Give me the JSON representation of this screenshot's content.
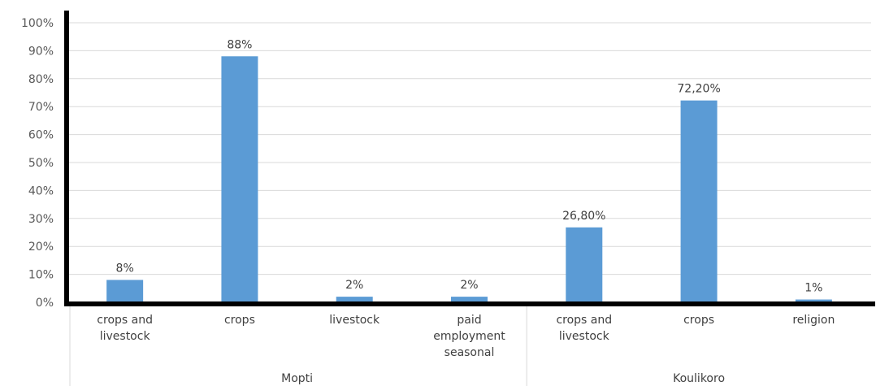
{
  "chart_data": {
    "type": "bar",
    "title": "",
    "xlabel": "",
    "ylabel": "",
    "ylim": [
      0,
      100
    ],
    "y_ticks": [
      "0%",
      "10%",
      "20%",
      "30%",
      "40%",
      "50%",
      "60%",
      "70%",
      "80%",
      "90%",
      "100%"
    ],
    "grid": true,
    "legend": "none",
    "bar_color": "#5B9BD5",
    "groups": [
      {
        "name": "Mopti",
        "categories": [
          {
            "label": [
              "crops and",
              "livestock"
            ],
            "value": 8,
            "data_label": "8%"
          },
          {
            "label": [
              "crops"
            ],
            "value": 88,
            "data_label": "88%"
          },
          {
            "label": [
              "livestock"
            ],
            "value": 2,
            "data_label": "2%"
          },
          {
            "label": [
              "paid",
              "employment",
              "seasonal"
            ],
            "value": 2,
            "data_label": "2%"
          }
        ]
      },
      {
        "name": "Koulikoro",
        "categories": [
          {
            "label": [
              "crops and",
              "livestock"
            ],
            "value": 26.8,
            "data_label": "26,80%"
          },
          {
            "label": [
              "crops"
            ],
            "value": 72.2,
            "data_label": "72,20%"
          },
          {
            "label": [
              "religion"
            ],
            "value": 1,
            "data_label": "1%"
          }
        ]
      }
    ]
  }
}
